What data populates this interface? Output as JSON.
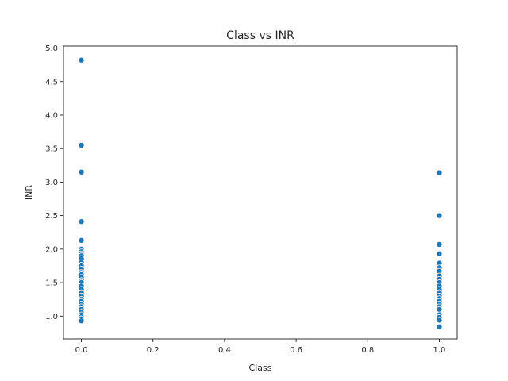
{
  "chart_data": {
    "type": "scatter",
    "title": "Class vs INR",
    "xlabel": "Class",
    "ylabel": "INR",
    "xlim": [
      -0.05,
      1.05
    ],
    "ylim": [
      0.66,
      5.03
    ],
    "xticks": [
      "0.0",
      "0.2",
      "0.4",
      "0.6",
      "0.8",
      "1.0"
    ],
    "yticks": [
      "1.0",
      "1.5",
      "2.0",
      "2.5",
      "3.0",
      "3.5",
      "4.0",
      "4.5",
      "5.0"
    ],
    "grid": false,
    "legend": "none",
    "marker_color": "#1f77b4",
    "points": [
      {
        "x": 0,
        "y": 4.82
      },
      {
        "x": 0,
        "y": 3.55
      },
      {
        "x": 0,
        "y": 3.15
      },
      {
        "x": 0,
        "y": 2.41
      },
      {
        "x": 0,
        "y": 2.13
      },
      {
        "x": 0,
        "y": 2.0
      },
      {
        "x": 0,
        "y": 1.96
      },
      {
        "x": 0,
        "y": 1.93
      },
      {
        "x": 0,
        "y": 1.9
      },
      {
        "x": 0,
        "y": 1.86
      },
      {
        "x": 0,
        "y": 1.8
      },
      {
        "x": 0,
        "y": 1.76
      },
      {
        "x": 0,
        "y": 1.7
      },
      {
        "x": 0,
        "y": 1.65
      },
      {
        "x": 0,
        "y": 1.62
      },
      {
        "x": 0,
        "y": 1.58
      },
      {
        "x": 0,
        "y": 1.53
      },
      {
        "x": 0,
        "y": 1.5
      },
      {
        "x": 0,
        "y": 1.45
      },
      {
        "x": 0,
        "y": 1.4
      },
      {
        "x": 0,
        "y": 1.35
      },
      {
        "x": 0,
        "y": 1.3
      },
      {
        "x": 0,
        "y": 1.25
      },
      {
        "x": 0,
        "y": 1.22
      },
      {
        "x": 0,
        "y": 1.18
      },
      {
        "x": 0,
        "y": 1.14
      },
      {
        "x": 0,
        "y": 1.1
      },
      {
        "x": 0,
        "y": 1.06
      },
      {
        "x": 0,
        "y": 1.02
      },
      {
        "x": 0,
        "y": 0.99
      },
      {
        "x": 0,
        "y": 0.96
      },
      {
        "x": 0,
        "y": 0.93
      },
      {
        "x": 1,
        "y": 3.14
      },
      {
        "x": 1,
        "y": 2.5
      },
      {
        "x": 1,
        "y": 2.07
      },
      {
        "x": 1,
        "y": 1.93
      },
      {
        "x": 1,
        "y": 1.79
      },
      {
        "x": 1,
        "y": 1.72
      },
      {
        "x": 1,
        "y": 1.67
      },
      {
        "x": 1,
        "y": 1.6
      },
      {
        "x": 1,
        "y": 1.55
      },
      {
        "x": 1,
        "y": 1.5
      },
      {
        "x": 1,
        "y": 1.45
      },
      {
        "x": 1,
        "y": 1.4
      },
      {
        "x": 1,
        "y": 1.35
      },
      {
        "x": 1,
        "y": 1.3
      },
      {
        "x": 1,
        "y": 1.26
      },
      {
        "x": 1,
        "y": 1.22
      },
      {
        "x": 1,
        "y": 1.18
      },
      {
        "x": 1,
        "y": 1.14
      },
      {
        "x": 1,
        "y": 1.1
      },
      {
        "x": 1,
        "y": 1.02
      },
      {
        "x": 1,
        "y": 0.98
      },
      {
        "x": 1,
        "y": 0.94
      },
      {
        "x": 1,
        "y": 0.84
      }
    ]
  }
}
